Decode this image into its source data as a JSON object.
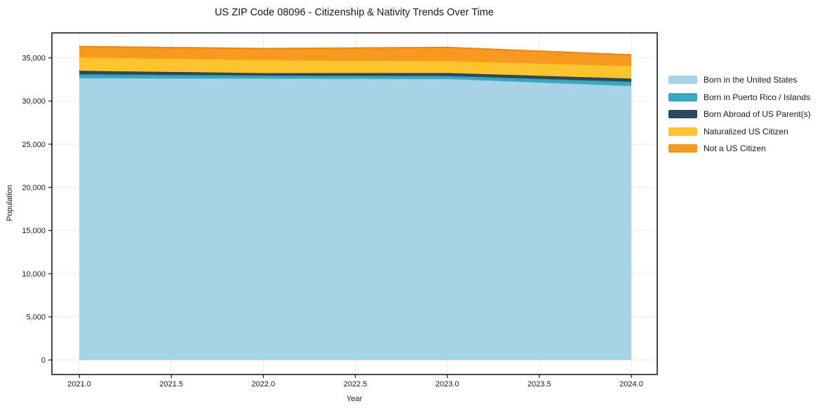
{
  "chart_data": {
    "type": "area",
    "stacked": true,
    "title": "US ZIP Code 08096 - Citizenship & Nativity Trends Over Time",
    "xlabel": "Year",
    "ylabel": "Population",
    "x": [
      2021,
      2022,
      2023,
      2024
    ],
    "series": [
      {
        "name": "Born in the United States",
        "color": "#a6d3e7",
        "edge_color": "#8ec6de",
        "values": [
          32650,
          32600,
          32560,
          31750
        ]
      },
      {
        "name": "Born in Puerto Rico / Islands",
        "color": "#39a7bd",
        "edge_color": "#2d93a9",
        "values": [
          450,
          360,
          350,
          490
        ]
      },
      {
        "name": "Born Abroad of US Parent(s)",
        "color": "#2b4a5c",
        "edge_color": "#20394a",
        "values": [
          400,
          270,
          330,
          350
        ]
      },
      {
        "name": "Naturalized US Citizen",
        "color": "#fcc32f",
        "edge_color": "#eeae12",
        "values": [
          1600,
          1550,
          1430,
          1510
        ]
      },
      {
        "name": "Not a US Citizen",
        "color": "#f8991f",
        "edge_color": "#e88410",
        "values": [
          1220,
          1300,
          1545,
          1250
        ]
      }
    ],
    "xticks": {
      "values": [
        2021,
        2021.5,
        2022,
        2022.5,
        2023,
        2023.5,
        2024
      ],
      "labels": [
        "2021.0",
        "2021.5",
        "2022.0",
        "2022.5",
        "2023.0",
        "2023.5",
        "2024.0"
      ]
    },
    "yticks": {
      "values": [
        0,
        5000,
        10000,
        15000,
        20000,
        25000,
        30000,
        35000
      ],
      "labels": [
        "0",
        "5,000",
        "10,000",
        "15,000",
        "20,000",
        "25,000",
        "30,000",
        "35,000"
      ]
    },
    "xlim": [
      2020.851,
      2024.141
    ],
    "ylim": [
      -1680,
      37890
    ],
    "grid": true,
    "legend_position": "right-outside",
    "colors": {
      "background": "#ffffff",
      "grid": "#eaeaea",
      "spine": "#1a1a1a",
      "text": "#1a1a1a"
    }
  }
}
